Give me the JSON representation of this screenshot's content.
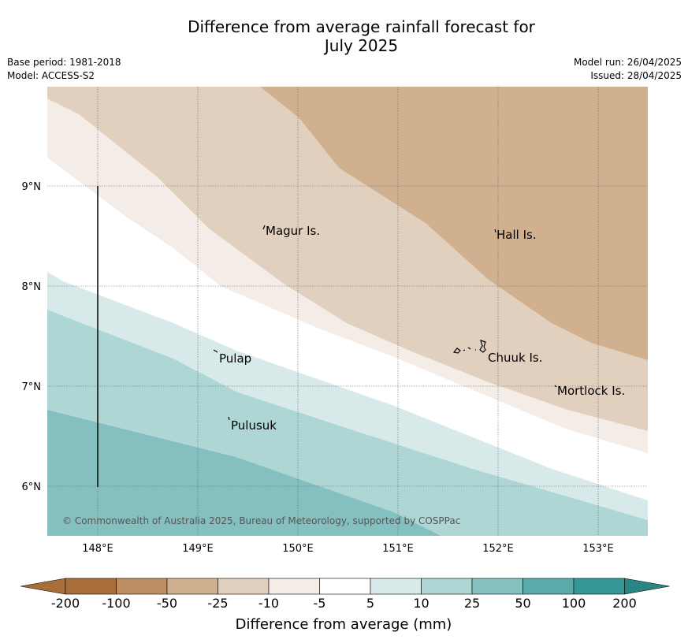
{
  "title": {
    "line1": "Difference from average rainfall forecast for",
    "line2": "July 2025"
  },
  "meta": {
    "base_period": "Base period: 1981-2018",
    "model": "Model: ACCESS-S2",
    "model_run": "Model run: 26/04/2025",
    "issued": "Issued: 28/04/2025"
  },
  "map": {
    "lat_labels": [
      "9°N",
      "8°N",
      "7°N",
      "6°N"
    ],
    "lon_labels": [
      "148°E",
      "149°E",
      "150°E",
      "151°E",
      "152°E",
      "153°E"
    ],
    "places": [
      "Magur Is.",
      "Hall Is.",
      "Pulap",
      "Chuuk Is.",
      "Mortlock Is.",
      "Pulusuk"
    ],
    "copyright": "© Commonwealth of Australia 2025, Bureau of Meteorology, supported by COSPPac"
  },
  "colorbar": {
    "ticks": [
      "-200",
      "-100",
      "-50",
      "-25",
      "-10",
      "-5",
      "5",
      "10",
      "25",
      "50",
      "100",
      "200"
    ],
    "colors": [
      "#a86e3a",
      "#bf8f63",
      "#d1b08f",
      "#e2d0bf",
      "#f4ece7",
      "#ffffff",
      "#d7eae9",
      "#aed6d5",
      "#84c0bf",
      "#5aaba9",
      "#329795",
      "#2a8583"
    ],
    "label": "Difference from average (mm)"
  }
}
